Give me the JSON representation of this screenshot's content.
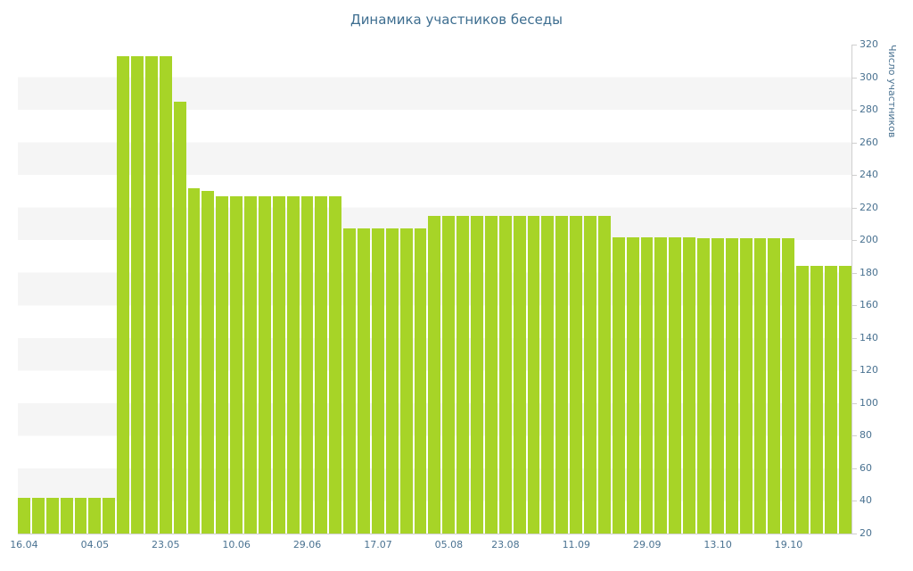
{
  "title": "Динамика участников беседы",
  "y_axis_title": "Число участников",
  "colors": {
    "bar": "#a7d427",
    "title_text": "#3e6e90",
    "axis_text": "#4a7291",
    "stripe": "#f5f5f5",
    "axis_line": "#cfcfcf"
  },
  "chart_data": {
    "type": "bar",
    "title": "Динамика участников беседы",
    "xlabel": "",
    "ylabel": "Число участников",
    "ylim": [
      20,
      320
    ],
    "ytick_step": 20,
    "grid": "horizontal-stripes",
    "legend": "none",
    "y_axis_side": "right",
    "x_tick_labels": [
      {
        "index": 0,
        "label": "16.04"
      },
      {
        "index": 5,
        "label": "04.05"
      },
      {
        "index": 10,
        "label": "23.05"
      },
      {
        "index": 15,
        "label": "10.06"
      },
      {
        "index": 20,
        "label": "29.06"
      },
      {
        "index": 25,
        "label": "17.07"
      },
      {
        "index": 30,
        "label": "05.08"
      },
      {
        "index": 34,
        "label": "23.08"
      },
      {
        "index": 39,
        "label": "11.09"
      },
      {
        "index": 44,
        "label": "29.09"
      },
      {
        "index": 49,
        "label": "13.10"
      },
      {
        "index": 54,
        "label": "19.10"
      }
    ],
    "values": [
      42,
      42,
      42,
      42,
      42,
      42,
      42,
      313,
      313,
      313,
      313,
      285,
      232,
      230,
      227,
      227,
      227,
      227,
      227,
      227,
      227,
      227,
      227,
      207,
      207,
      207,
      207,
      207,
      207,
      215,
      215,
      215,
      215,
      215,
      215,
      215,
      215,
      215,
      215,
      215,
      215,
      215,
      202,
      202,
      202,
      202,
      202,
      202,
      201,
      201,
      201,
      201,
      201,
      201,
      201,
      184,
      184,
      184,
      184
    ]
  }
}
